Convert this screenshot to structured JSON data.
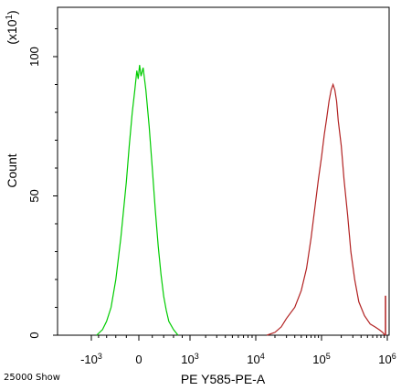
{
  "chart_data": {
    "type": "line",
    "title": "",
    "xlabel": "PE Y585-PE-A",
    "ylabel": "Count",
    "yscale_label_base": "(x10",
    "yscale_label_exp": "1",
    "yscale_label_close": ")",
    "footer_text": "25000 Show",
    "x_scale": "biexponential",
    "ylim": [
      0,
      125
    ],
    "y_ticks": [
      {
        "value": 0,
        "label": "0"
      },
      {
        "value": 50,
        "label": "50"
      },
      {
        "value": 100,
        "label": "100"
      }
    ],
    "x_ticks": [
      {
        "value": -1000,
        "base": "-10",
        "exp": "3"
      },
      {
        "value": 0,
        "base": "0",
        "exp": ""
      },
      {
        "value": 1000,
        "base": "10",
        "exp": "3"
      },
      {
        "value": 10000,
        "base": "10",
        "exp": "4"
      },
      {
        "value": 100000,
        "base": "10",
        "exp": "5"
      },
      {
        "value": 1000000,
        "base": "10",
        "exp": "6"
      }
    ],
    "grid": false,
    "series": [
      {
        "color": "#00cc00",
        "points": [
          [
            -850,
            0
          ],
          [
            -700,
            2
          ],
          [
            -600,
            5
          ],
          [
            -500,
            10
          ],
          [
            -400,
            20
          ],
          [
            -300,
            35
          ],
          [
            -250,
            45
          ],
          [
            -200,
            55
          ],
          [
            -150,
            68
          ],
          [
            -100,
            80
          ],
          [
            -60,
            88
          ],
          [
            -30,
            95
          ],
          [
            -10,
            92
          ],
          [
            10,
            97
          ],
          [
            30,
            93
          ],
          [
            60,
            96
          ],
          [
            100,
            88
          ],
          [
            150,
            75
          ],
          [
            200,
            60
          ],
          [
            250,
            45
          ],
          [
            300,
            32
          ],
          [
            350,
            22
          ],
          [
            400,
            14
          ],
          [
            450,
            9
          ],
          [
            500,
            5
          ],
          [
            600,
            2
          ],
          [
            700,
            0
          ]
        ]
      },
      {
        "color": "#b22222",
        "points": [
          [
            15000,
            0
          ],
          [
            20000,
            1
          ],
          [
            25000,
            3
          ],
          [
            30000,
            6
          ],
          [
            40000,
            10
          ],
          [
            50000,
            16
          ],
          [
            60000,
            24
          ],
          [
            70000,
            35
          ],
          [
            80000,
            46
          ],
          [
            90000,
            56
          ],
          [
            100000,
            64
          ],
          [
            110000,
            72
          ],
          [
            120000,
            78
          ],
          [
            130000,
            84
          ],
          [
            140000,
            88
          ],
          [
            150000,
            90
          ],
          [
            160000,
            88
          ],
          [
            170000,
            84
          ],
          [
            180000,
            77
          ],
          [
            200000,
            68
          ],
          [
            220000,
            56
          ],
          [
            250000,
            43
          ],
          [
            280000,
            30
          ],
          [
            320000,
            20
          ],
          [
            370000,
            12
          ],
          [
            450000,
            7
          ],
          [
            550000,
            4
          ],
          [
            650000,
            3
          ],
          [
            750000,
            2
          ],
          [
            850000,
            1
          ],
          [
            920000,
            0
          ]
        ]
      },
      {
        "color": "#b22222",
        "points": [
          [
            935000,
            0
          ],
          [
            935000,
            14
          ],
          [
            945000,
            14
          ],
          [
            945000,
            0
          ]
        ]
      }
    ]
  }
}
